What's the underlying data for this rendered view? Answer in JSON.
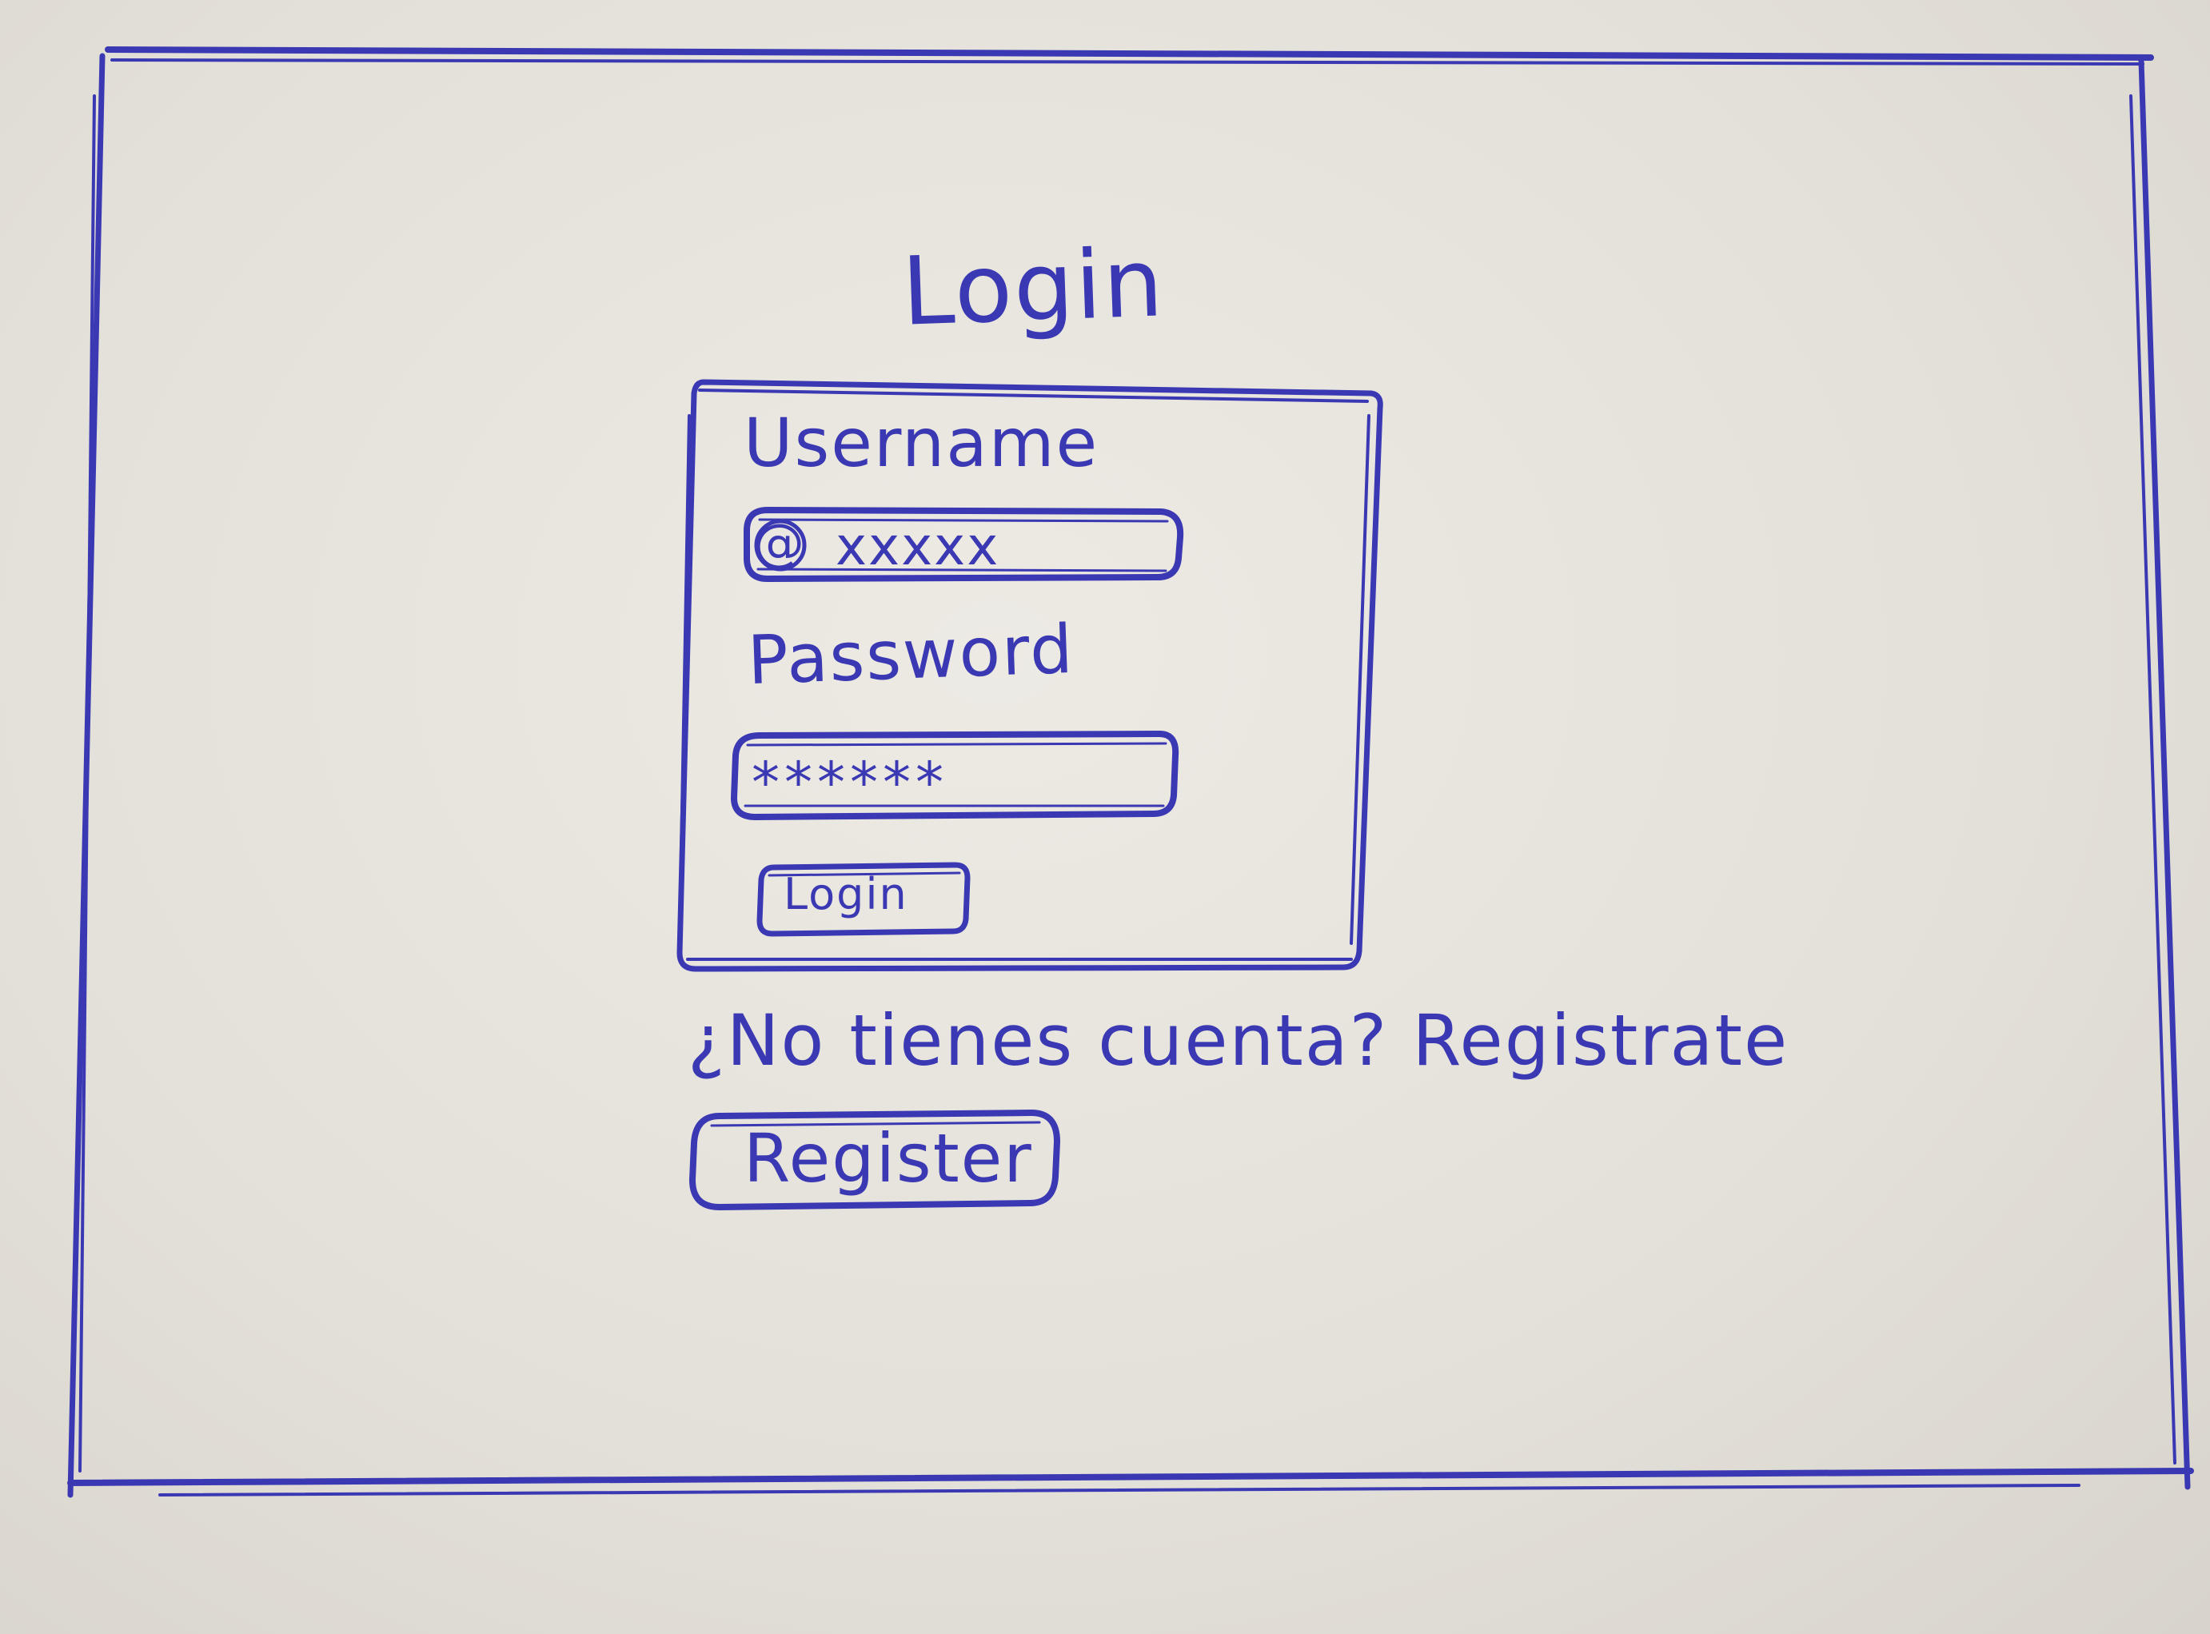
{
  "app": {
    "title": "Login"
  },
  "form": {
    "username_label": "Username",
    "username_value": "xxxxx",
    "username_icon": "at-icon",
    "password_label": "Password",
    "password_value": "******",
    "login_button_label": "Login"
  },
  "footer": {
    "prompt_text": "¿No tienes cuenta? Registrate",
    "register_button_label": "Register"
  },
  "colors": {
    "ink": "#3a38b2",
    "paper": "#e4e1da"
  }
}
